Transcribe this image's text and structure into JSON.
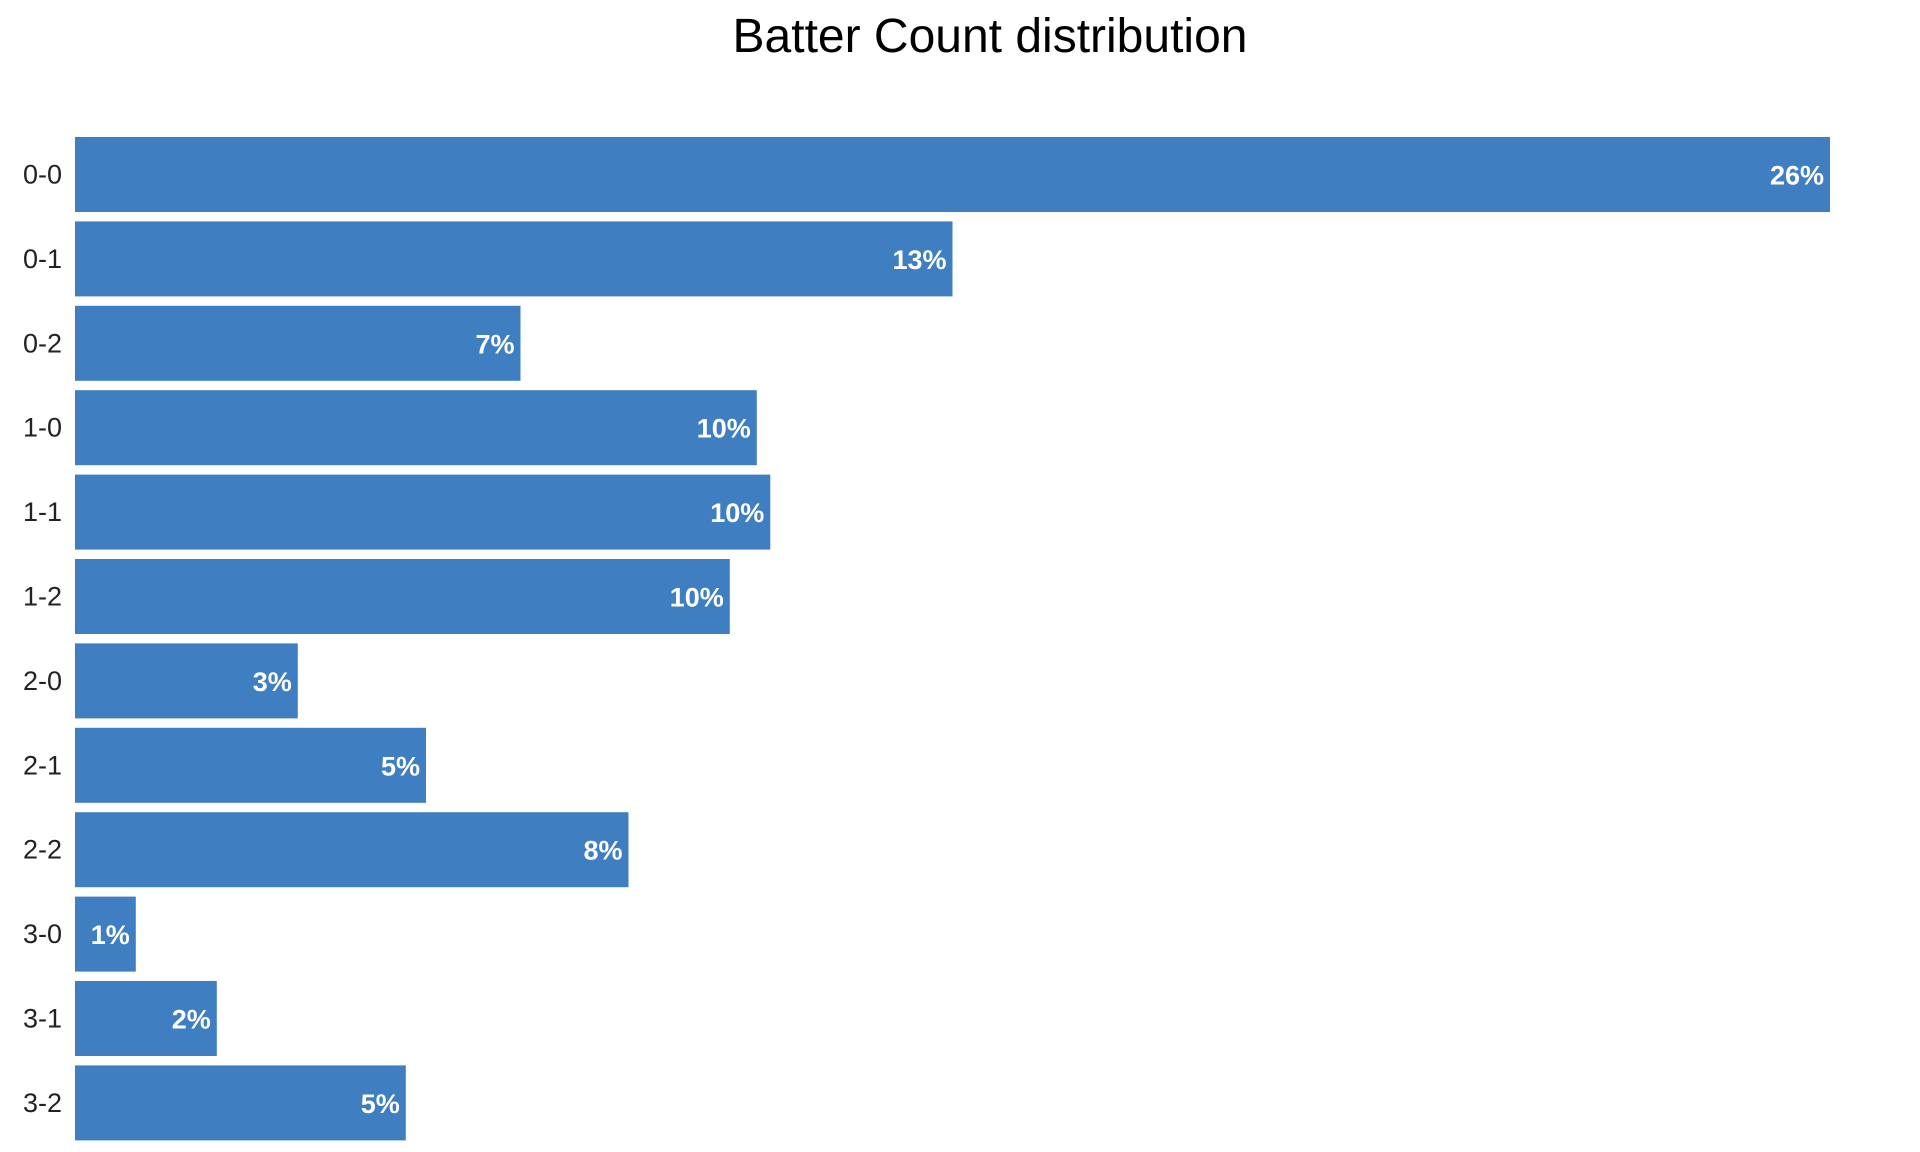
{
  "chart_data": {
    "type": "bar",
    "orientation": "horizontal",
    "title": "Batter Count distribution",
    "xlabel": "",
    "ylabel": "",
    "categories": [
      "0-0",
      "0-1",
      "0-2",
      "1-0",
      "1-1",
      "1-2",
      "2-0",
      "2-1",
      "2-2",
      "3-0",
      "3-1",
      "3-2"
    ],
    "values": [
      26.0,
      13.0,
      6.6,
      10.1,
      10.3,
      9.7,
      3.3,
      5.2,
      8.2,
      0.9,
      2.1,
      4.9
    ],
    "data_labels": [
      "26%",
      "13%",
      "7%",
      "10%",
      "10%",
      "10%",
      "3%",
      "5%",
      "8%",
      "1%",
      "2%",
      "5%"
    ],
    "xlim": [
      0,
      27
    ],
    "grid": false,
    "legend": "none",
    "bar_color": "#3f7fc1"
  }
}
